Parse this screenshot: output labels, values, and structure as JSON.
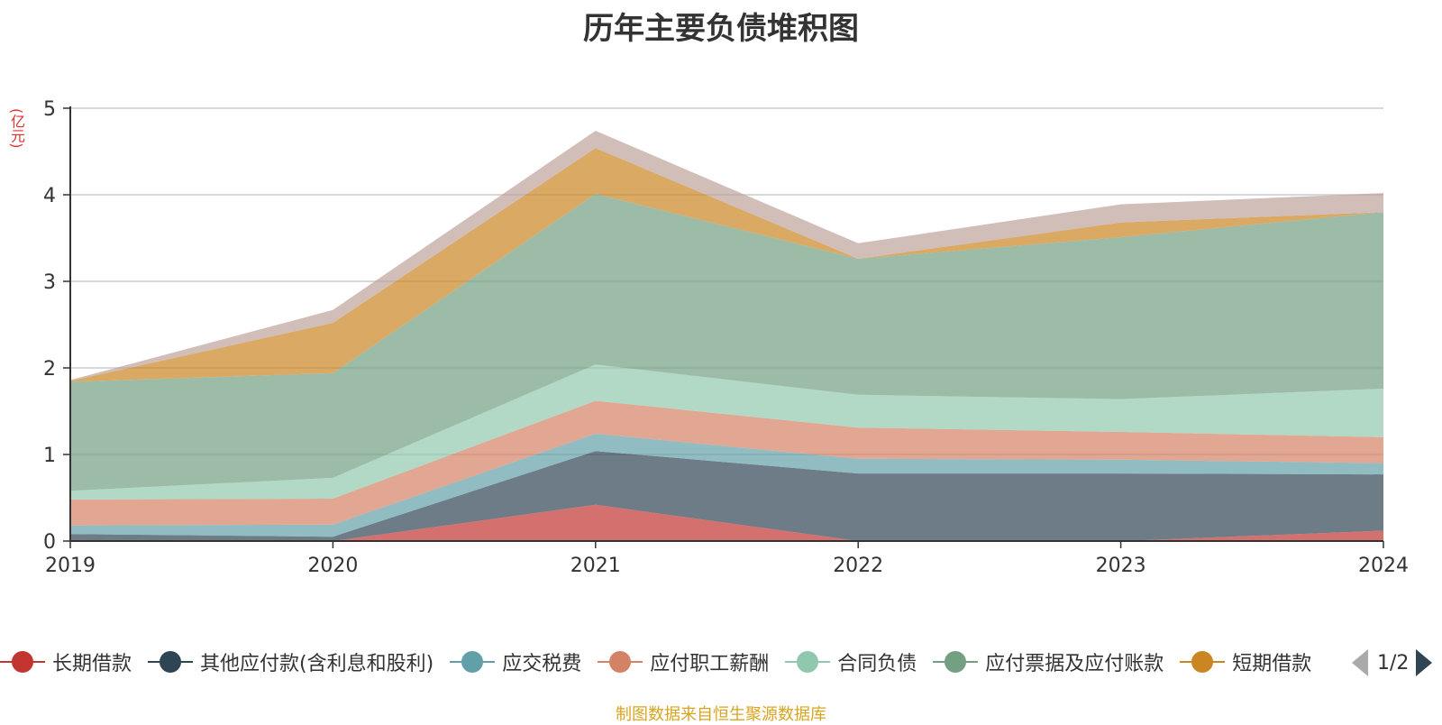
{
  "chart_data": {
    "type": "area",
    "stacked": true,
    "title": "历年主要负债堆积图",
    "unit_label": "(亿元)",
    "x": [
      "2019",
      "2020",
      "2021",
      "2022",
      "2023",
      "2024"
    ],
    "ylim": [
      0,
      5
    ],
    "yticks": [
      "0",
      "1",
      "2",
      "3",
      "4",
      "5"
    ],
    "grid": true,
    "legend_position": "bottom",
    "series": [
      {
        "name": "长期借款",
        "color": "#c23531",
        "values": [
          0.0,
          0.0,
          0.42,
          0.0,
          0.0,
          0.12
        ]
      },
      {
        "name": "其他应付款(含利息和股利)",
        "color": "#2f4554",
        "values": [
          0.08,
          0.05,
          0.62,
          0.78,
          0.78,
          0.65
        ]
      },
      {
        "name": "应交税费",
        "color": "#61a0a8",
        "values": [
          0.1,
          0.14,
          0.2,
          0.17,
          0.16,
          0.13
        ]
      },
      {
        "name": "应付职工薪酬",
        "color": "#d48265",
        "values": [
          0.3,
          0.3,
          0.38,
          0.36,
          0.32,
          0.3
        ]
      },
      {
        "name": "合同负债",
        "color": "#91c7ae",
        "values": [
          0.1,
          0.24,
          0.42,
          0.38,
          0.38,
          0.56
        ]
      },
      {
        "name": "应付票据及应付账款",
        "color": "#749f83",
        "values": [
          1.26,
          1.21,
          1.97,
          1.57,
          1.87,
          2.04
        ]
      },
      {
        "name": "短期借款",
        "color": "#ca8622",
        "values": [
          0.01,
          0.58,
          0.53,
          0.0,
          0.17,
          0.0
        ]
      },
      {
        "name": "",
        "color": "#bda29a",
        "values": [
          0.01,
          0.15,
          0.2,
          0.18,
          0.21,
          0.22
        ]
      }
    ]
  },
  "legend": {
    "visible_items": [
      "长期借款",
      "其他应付款(含利息和股利)",
      "应交税费",
      "应付职工薪酬",
      "合同负债",
      "应付票据及应付账款",
      "短期借款"
    ]
  },
  "pager": {
    "text": "1/2"
  },
  "footer": {
    "source": "制图数据来自恒生聚源数据库"
  }
}
